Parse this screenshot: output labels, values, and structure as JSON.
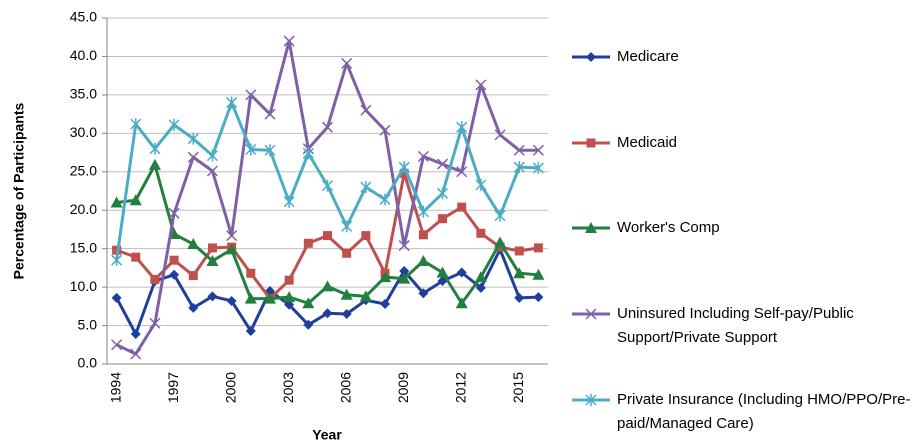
{
  "chart_data": {
    "type": "line",
    "x_label": "Year",
    "y_label": "Percentage of Participants",
    "categories": [
      "1994",
      null,
      null,
      "1997",
      null,
      null,
      "2000",
      null,
      null,
      "2003",
      null,
      null,
      "2006",
      null,
      null,
      "2009",
      null,
      null,
      "2012",
      null,
      null,
      "2015",
      null
    ],
    "ylim": [
      0,
      45
    ],
    "yticks": [
      {
        "value": 0,
        "label": "0.0"
      },
      {
        "value": 5,
        "label": "5.0"
      },
      {
        "value": 10,
        "label": "10.0"
      },
      {
        "value": 15,
        "label": "15.0"
      },
      {
        "value": 20,
        "label": "20.0"
      },
      {
        "value": 25,
        "label": "25.0"
      },
      {
        "value": 30,
        "label": "30.0"
      },
      {
        "value": 35,
        "label": "35.0"
      },
      {
        "value": 40,
        "label": "40.0"
      },
      {
        "value": 45,
        "label": "45.0"
      }
    ],
    "grid": true,
    "legend": "right",
    "series": [
      {
        "name": "Medicare",
        "color": "#1f3f9c",
        "marker": "diamond",
        "values": [
          8.6,
          3.9,
          10.8,
          11.6,
          7.3,
          8.8,
          8.2,
          4.3,
          9.5,
          7.7,
          5.1,
          6.6,
          6.5,
          8.3,
          7.8,
          12.1,
          9.2,
          10.8,
          11.9,
          9.9,
          14.9,
          8.6,
          8.7
        ]
      },
      {
        "name": "Medicaid",
        "color": "#c0504d",
        "marker": "square",
        "values": [
          14.8,
          13.9,
          11.0,
          13.5,
          11.5,
          15.1,
          15.2,
          11.8,
          8.5,
          10.9,
          15.7,
          16.7,
          14.4,
          16.7,
          11.8,
          24.8,
          16.8,
          18.9,
          20.4,
          17.0,
          15.2,
          14.7,
          15.1
        ]
      },
      {
        "name": "Worker's Comp",
        "color": "#217f3f",
        "marker": "triangle",
        "values": [
          21.0,
          21.3,
          25.9,
          16.9,
          15.6,
          13.4,
          14.9,
          8.5,
          8.5,
          8.7,
          7.9,
          10.1,
          9.0,
          8.8,
          11.3,
          11.1,
          13.4,
          11.9,
          7.9,
          11.3,
          15.8,
          11.8,
          11.6
        ]
      },
      {
        "name": "Uninsured Including Self-pay/Public Support/Private Support",
        "color": "#7f5fa6",
        "marker": "x",
        "values": [
          2.5,
          1.3,
          5.3,
          19.6,
          26.9,
          25.1,
          16.7,
          35.0,
          32.5,
          42.0,
          28.0,
          30.8,
          39.1,
          33.0,
          30.4,
          15.4,
          27.0,
          26.0,
          25.0,
          36.3,
          29.8,
          27.8,
          27.8
        ]
      },
      {
        "name": "Private Insurance (Including HMO/PPO/Pre-paid/Managed Care)",
        "color": "#4bacc6",
        "marker": "asterisk",
        "values": [
          13.5,
          31.2,
          28.0,
          31.1,
          29.3,
          27.1,
          34.0,
          27.9,
          27.8,
          21.1,
          27.4,
          23.2,
          17.9,
          23.0,
          21.4,
          25.6,
          19.8,
          22.2,
          30.8,
          23.3,
          19.3,
          25.6,
          25.5
        ]
      }
    ]
  }
}
